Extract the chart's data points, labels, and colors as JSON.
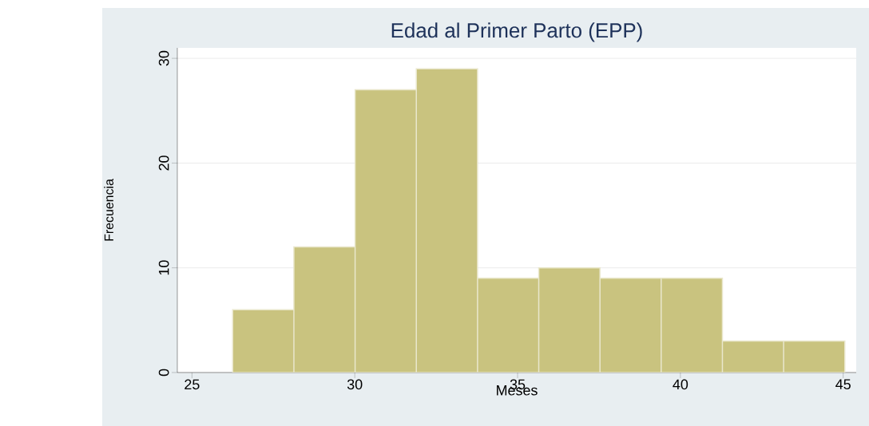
{
  "chart_data": {
    "type": "histogram",
    "title": "Edad al Primer Parto (EPP)",
    "xlabel": "Meses",
    "ylabel": "Frecuencia",
    "bins": [
      26.25,
      28.13,
      30.01,
      31.89,
      33.77,
      35.65,
      37.53,
      39.41,
      41.29,
      43.17,
      45.05
    ],
    "values": [
      6,
      12,
      27,
      29,
      9,
      10,
      9,
      9,
      3,
      3
    ],
    "color": "#c9c37f",
    "xlim": [
      24.55,
      45.4
    ],
    "xticks": [
      25,
      30,
      35,
      40,
      45
    ],
    "ylim": [
      0,
      31
    ],
    "yticks": [
      0,
      10,
      20,
      30
    ],
    "grid": "y"
  }
}
